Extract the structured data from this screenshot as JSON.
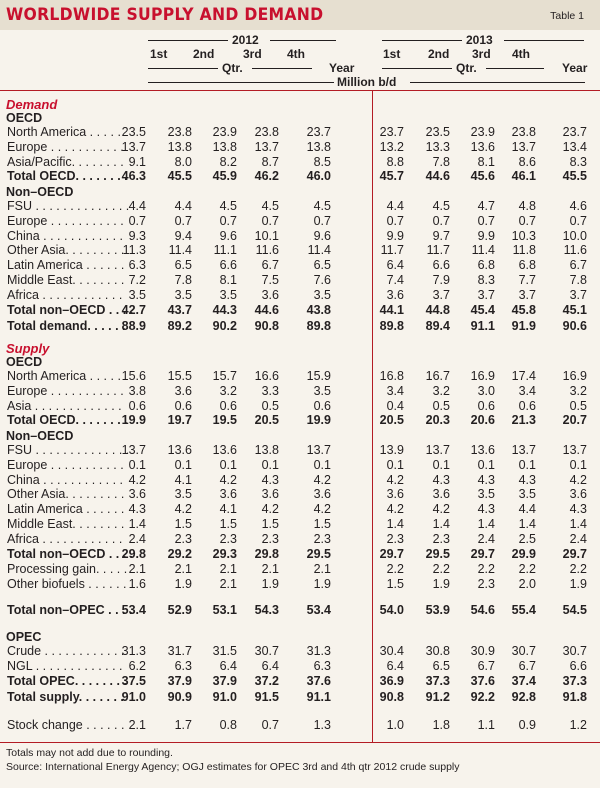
{
  "title": "WORLDWIDE SUPPLY AND DEMAND",
  "table_label": "Table 1",
  "header": {
    "year_2012": "2012",
    "year_2013": "2013",
    "quarters": [
      "1st",
      "2nd",
      "3rd",
      "4th"
    ],
    "qtr": "Qtr.",
    "year": "Year",
    "units": "Million b/d"
  },
  "sections": [
    {
      "heading": "Demand",
      "groups": [
        {
          "label": "OECD",
          "rows": [
            {
              "label": "North America . . . . .",
              "values": [
                "23.5",
                "23.8",
                "23.9",
                "23.8",
                "23.7",
                "23.7",
                "23.5",
                "23.9",
                "23.8",
                "23.7"
              ]
            },
            {
              "label": "Europe . . . . . . . . . . .",
              "values": [
                "13.7",
                "13.8",
                "13.8",
                "13.7",
                "13.8",
                "13.2",
                "13.3",
                "13.6",
                "13.7",
                "13.4"
              ]
            },
            {
              "label": "Asia/Pacific. . . . . . . .",
              "values": [
                "9.1",
                "8.0",
                "8.2",
                "8.7",
                "8.5",
                "8.8",
                "7.8",
                "8.1",
                "8.6",
                "8.3"
              ]
            },
            {
              "label": "Total OECD. . . . . . . .",
              "bold": true,
              "values": [
                "46.3",
                "45.5",
                "45.9",
                "46.2",
                "46.0",
                "45.7",
                "44.6",
                "45.6",
                "46.1",
                "45.5"
              ]
            }
          ]
        },
        {
          "label": "Non–OECD",
          "rows": [
            {
              "label": "FSU . . . . . . . . . . . . . .",
              "values": [
                "4.4",
                "4.4",
                "4.5",
                "4.5",
                "4.5",
                "4.4",
                "4.5",
                "4.7",
                "4.8",
                "4.6"
              ]
            },
            {
              "label": "Europe . . . . . . . . . . .",
              "values": [
                "0.7",
                "0.7",
                "0.7",
                "0.7",
                "0.7",
                "0.7",
                "0.7",
                "0.7",
                "0.7",
                "0.7"
              ]
            },
            {
              "label": "China . . . . . . . . . . . .",
              "values": [
                "9.3",
                "9.4",
                "9.6",
                "10.1",
                "9.6",
                "9.9",
                "9.7",
                "9.9",
                "10.3",
                "10.0"
              ]
            },
            {
              "label": "Other Asia. . . . . . . . .",
              "values": [
                "11.3",
                "11.4",
                "11.1",
                "11.6",
                "11.4",
                "11.7",
                "11.7",
                "11.4",
                "11.8",
                "11.6"
              ]
            },
            {
              "label": "Latin America . . . . . .",
              "values": [
                "6.3",
                "6.5",
                "6.6",
                "6.7",
                "6.5",
                "6.4",
                "6.6",
                "6.8",
                "6.8",
                "6.7"
              ]
            },
            {
              "label": "Middle East. . . . . . . .",
              "values": [
                "7.2",
                "7.8",
                "8.1",
                "7.5",
                "7.6",
                "7.4",
                "7.9",
                "8.3",
                "7.7",
                "7.8"
              ]
            },
            {
              "label": "Africa . . . . . . . . . . . .",
              "values": [
                "3.5",
                "3.5",
                "3.5",
                "3.6",
                "3.5",
                "3.6",
                "3.7",
                "3.7",
                "3.7",
                "3.7"
              ]
            },
            {
              "label": "Total non–OECD . . . .",
              "bold": true,
              "values": [
                "42.7",
                "43.7",
                "44.3",
                "44.6",
                "43.8",
                "44.1",
                "44.8",
                "45.4",
                "45.8",
                "45.1"
              ]
            }
          ]
        },
        {
          "label": "",
          "rows": [
            {
              "label": "Total demand. . . . . .",
              "bold": true,
              "values": [
                "88.9",
                "89.2",
                "90.2",
                "90.8",
                "89.8",
                "89.8",
                "89.4",
                "91.1",
                "91.9",
                "90.6"
              ]
            }
          ]
        }
      ]
    },
    {
      "heading": "Supply",
      "groups": [
        {
          "label": "OECD",
          "rows": [
            {
              "label": "North America . . . . .",
              "values": [
                "15.6",
                "15.5",
                "15.7",
                "16.6",
                "15.9",
                "16.8",
                "16.7",
                "16.9",
                "17.4",
                "16.9"
              ]
            },
            {
              "label": "Europe . . . . . . . . . . .",
              "values": [
                "3.8",
                "3.6",
                "3.2",
                "3.3",
                "3.5",
                "3.4",
                "3.2",
                "3.0",
                "3.4",
                "3.2"
              ]
            },
            {
              "label": "Asia . . . . . . . . . . . . .",
              "values": [
                "0.6",
                "0.6",
                "0.6",
                "0.5",
                "0.6",
                "0.4",
                "0.5",
                "0.6",
                "0.6",
                "0.5"
              ]
            },
            {
              "label": "Total OECD. . . . . . . .",
              "bold": true,
              "values": [
                "19.9",
                "19.7",
                "19.5",
                "20.5",
                "19.9",
                "20.5",
                "20.3",
                "20.6",
                "21.3",
                "20.7"
              ]
            }
          ]
        },
        {
          "label": "Non–OECD",
          "rows": [
            {
              "label": "FSU . . . . . . . . . . . . . .",
              "values": [
                "13.7",
                "13.6",
                "13.6",
                "13.8",
                "13.7",
                "13.9",
                "13.7",
                "13.6",
                "13.7",
                "13.7"
              ]
            },
            {
              "label": "Europe . . . . . . . . . . .",
              "values": [
                "0.1",
                "0.1",
                "0.1",
                "0.1",
                "0.1",
                "0.1",
                "0.1",
                "0.1",
                "0.1",
                "0.1"
              ]
            },
            {
              "label": "China . . . . . . . . . . . .",
              "values": [
                "4.2",
                "4.1",
                "4.2",
                "4.3",
                "4.2",
                "4.2",
                "4.3",
                "4.3",
                "4.3",
                "4.2"
              ]
            },
            {
              "label": "Other Asia. . . . . . . . .",
              "values": [
                "3.6",
                "3.5",
                "3.6",
                "3.6",
                "3.6",
                "3.6",
                "3.6",
                "3.5",
                "3.5",
                "3.6"
              ]
            },
            {
              "label": "Latin America . . . . . .",
              "values": [
                "4.3",
                "4.2",
                "4.1",
                "4.2",
                "4.2",
                "4.2",
                "4.2",
                "4.3",
                "4.4",
                "4.3"
              ]
            },
            {
              "label": "Middle East. . . . . . . .",
              "values": [
                "1.4",
                "1.5",
                "1.5",
                "1.5",
                "1.5",
                "1.4",
                "1.4",
                "1.4",
                "1.4",
                "1.4"
              ]
            },
            {
              "label": "Africa . . . . . . . . . . . .",
              "values": [
                "2.4",
                "2.3",
                "2.3",
                "2.3",
                "2.3",
                "2.3",
                "2.3",
                "2.4",
                "2.5",
                "2.4"
              ]
            },
            {
              "label": "Total non–OECD . . . .",
              "bold": true,
              "values": [
                "29.8",
                "29.2",
                "29.3",
                "29.8",
                "29.5",
                "29.7",
                "29.5",
                "29.7",
                "29.9",
                "29.7"
              ]
            }
          ]
        },
        {
          "label": "",
          "rows": [
            {
              "label": "Processing gain. . . . .",
              "values": [
                "2.1",
                "2.1",
                "2.1",
                "2.1",
                "2.1",
                "2.2",
                "2.2",
                "2.2",
                "2.2",
                "2.2"
              ]
            },
            {
              "label": "Other biofuels . . . . . .",
              "values": [
                "1.6",
                "1.9",
                "2.1",
                "1.9",
                "1.9",
                "1.5",
                "1.9",
                "2.3",
                "2.0",
                "1.9"
              ]
            }
          ]
        },
        {
          "label": "",
          "rows": [
            {
              "label": "Total non–OPEC . . . .",
              "bold": true,
              "values": [
                "53.4",
                "52.9",
                "53.1",
                "54.3",
                "53.4",
                "54.0",
                "53.9",
                "54.6",
                "55.4",
                "54.5"
              ]
            }
          ]
        },
        {
          "label": "OPEC",
          "rows": [
            {
              "label": "Crude . . . . . . . . . . . .",
              "values": [
                "31.3",
                "31.7",
                "31.5",
                "30.7",
                "31.3",
                "30.4",
                "30.8",
                "30.9",
                "30.7",
                "30.7"
              ]
            },
            {
              "label": "NGL . . . . . . . . . . . . .",
              "values": [
                "6.2",
                "6.3",
                "6.4",
                "6.4",
                "6.3",
                "6.4",
                "6.5",
                "6.7",
                "6.7",
                "6.6"
              ]
            },
            {
              "label": "Total OPEC. . . . . . . .",
              "bold": true,
              "values": [
                "37.5",
                "37.9",
                "37.9",
                "37.2",
                "37.6",
                "36.9",
                "37.3",
                "37.6",
                "37.4",
                "37.3"
              ]
            }
          ]
        },
        {
          "label": "",
          "rows": [
            {
              "label": "Total supply. . . . . . .",
              "bold": true,
              "values": [
                "91.0",
                "90.9",
                "91.0",
                "91.5",
                "91.1",
                "90.8",
                "91.2",
                "92.2",
                "92.8",
                "91.8"
              ]
            }
          ]
        },
        {
          "label": "",
          "rows": [
            {
              "label": "Stock change . . . . . .",
              "values": [
                "2.1",
                "1.7",
                "0.8",
                "0.7",
                "1.3",
                "1.0",
                "1.8",
                "1.1",
                "0.9",
                "1.2"
              ]
            }
          ]
        }
      ]
    }
  ],
  "footer": {
    "note": "Totals may not add due to rounding.",
    "source": "Source: International Energy Agency; OGJ estimates for OPEC 3rd and 4th qtr 2012 crude supply"
  }
}
